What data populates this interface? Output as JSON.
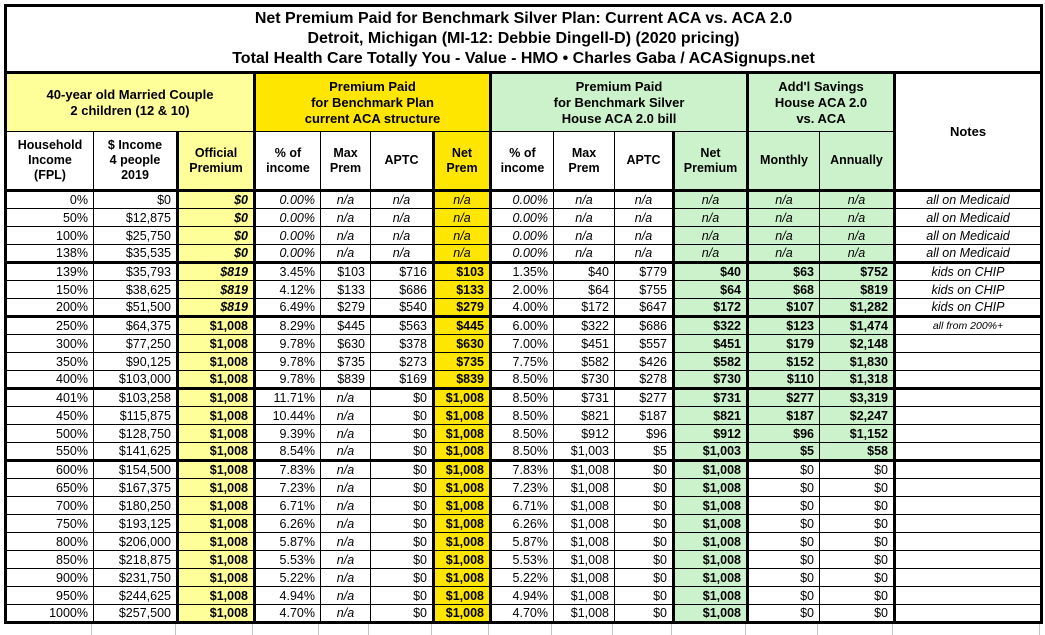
{
  "colors": {
    "pale_yellow": "#FFFF99",
    "bright_yellow": "#FFE600",
    "light_green": "#CCF2CC",
    "border_black": "#000000",
    "grid_gray": "#C4C4C4"
  },
  "chart_data": {
    "type": "table",
    "title_lines": [
      "Net Premium Paid for Benchmark Silver Plan: Current ACA vs. ACA 2.0",
      "Detroit, Michigan (MI-12: Debbie Dingell-D) (2020 pricing)",
      "Total Health Care Totally You - Value - HMO • Charles Gaba / ACASignups.net"
    ],
    "column_groups": [
      {
        "label": "40-year old Married Couple\n2 children (12 & 10)",
        "span": 3,
        "color": "pale_yellow"
      },
      {
        "label": "Premium Paid\nfor Benchmark Plan\ncurrent ACA structure",
        "span": 4,
        "color": "bright_yellow"
      },
      {
        "label": "Premium Paid\nfor Benchmark Silver\nHouse ACA 2.0 bill",
        "span": 4,
        "color": "light_green"
      },
      {
        "label": "Add'l Savings\nHouse ACA 2.0\nvs. ACA",
        "span": 2,
        "color": "light_green"
      },
      {
        "label": "Notes",
        "span": 1,
        "color": "white"
      }
    ],
    "columns": [
      "Household\nIncome\n(FPL)",
      "$ Income\n4 people\n2019",
      "Official\nPremium",
      "% of\nincome",
      "Max\nPrem",
      "APTC",
      "Net\nPrem",
      "% of\nincome",
      "Max\nPrem",
      "APTC",
      "Net\nPremium",
      "Monthly",
      "Annually",
      "Notes"
    ],
    "rows": [
      [
        "0%",
        "$0",
        "$0",
        "0.00%",
        "n/a",
        "n/a",
        "n/a",
        "0.00%",
        "n/a",
        "n/a",
        "n/a",
        "n/a",
        "n/a",
        "all on Medicaid"
      ],
      [
        "50%",
        "$12,875",
        "$0",
        "0.00%",
        "n/a",
        "n/a",
        "n/a",
        "0.00%",
        "n/a",
        "n/a",
        "n/a",
        "n/a",
        "n/a",
        "all on Medicaid"
      ],
      [
        "100%",
        "$25,750",
        "$0",
        "0.00%",
        "n/a",
        "n/a",
        "n/a",
        "0.00%",
        "n/a",
        "n/a",
        "n/a",
        "n/a",
        "n/a",
        "all on Medicaid"
      ],
      [
        "138%",
        "$35,535",
        "$0",
        "0.00%",
        "n/a",
        "n/a",
        "n/a",
        "0.00%",
        "n/a",
        "n/a",
        "n/a",
        "n/a",
        "n/a",
        "all on Medicaid"
      ],
      [
        "139%",
        "$35,793",
        "$819",
        "3.45%",
        "$103",
        "$716",
        "$103",
        "1.35%",
        "$40",
        "$779",
        "$40",
        "$63",
        "$752",
        "kids on CHIP"
      ],
      [
        "150%",
        "$38,625",
        "$819",
        "4.12%",
        "$133",
        "$686",
        "$133",
        "2.00%",
        "$64",
        "$755",
        "$64",
        "$68",
        "$819",
        "kids on CHIP"
      ],
      [
        "200%",
        "$51,500",
        "$819",
        "6.49%",
        "$279",
        "$540",
        "$279",
        "4.00%",
        "$172",
        "$647",
        "$172",
        "$107",
        "$1,282",
        "kids on CHIP"
      ],
      [
        "250%",
        "$64,375",
        "$1,008",
        "8.29%",
        "$445",
        "$563",
        "$445",
        "6.00%",
        "$322",
        "$686",
        "$322",
        "$123",
        "$1,474",
        "all from 200%+"
      ],
      [
        "300%",
        "$77,250",
        "$1,008",
        "9.78%",
        "$630",
        "$378",
        "$630",
        "7.00%",
        "$451",
        "$557",
        "$451",
        "$179",
        "$2,148",
        ""
      ],
      [
        "350%",
        "$90,125",
        "$1,008",
        "9.78%",
        "$735",
        "$273",
        "$735",
        "7.75%",
        "$582",
        "$426",
        "$582",
        "$152",
        "$1,830",
        ""
      ],
      [
        "400%",
        "$103,000",
        "$1,008",
        "9.78%",
        "$839",
        "$169",
        "$839",
        "8.50%",
        "$730",
        "$278",
        "$730",
        "$110",
        "$1,318",
        ""
      ],
      [
        "401%",
        "$103,258",
        "$1,008",
        "11.71%",
        "n/a",
        "$0",
        "$1,008",
        "8.50%",
        "$731",
        "$277",
        "$731",
        "$277",
        "$3,319",
        ""
      ],
      [
        "450%",
        "$115,875",
        "$1,008",
        "10.44%",
        "n/a",
        "$0",
        "$1,008",
        "8.50%",
        "$821",
        "$187",
        "$821",
        "$187",
        "$2,247",
        ""
      ],
      [
        "500%",
        "$128,750",
        "$1,008",
        "9.39%",
        "n/a",
        "$0",
        "$1,008",
        "8.50%",
        "$912",
        "$96",
        "$912",
        "$96",
        "$1,152",
        ""
      ],
      [
        "550%",
        "$141,625",
        "$1,008",
        "8.54%",
        "n/a",
        "$0",
        "$1,008",
        "8.50%",
        "$1,003",
        "$5",
        "$1,003",
        "$5",
        "$58",
        ""
      ],
      [
        "600%",
        "$154,500",
        "$1,008",
        "7.83%",
        "n/a",
        "$0",
        "$1,008",
        "7.83%",
        "$1,008",
        "$0",
        "$1,008",
        "$0",
        "$0",
        ""
      ],
      [
        "650%",
        "$167,375",
        "$1,008",
        "7.23%",
        "n/a",
        "$0",
        "$1,008",
        "7.23%",
        "$1,008",
        "$0",
        "$1,008",
        "$0",
        "$0",
        ""
      ],
      [
        "700%",
        "$180,250",
        "$1,008",
        "6.71%",
        "n/a",
        "$0",
        "$1,008",
        "6.71%",
        "$1,008",
        "$0",
        "$1,008",
        "$0",
        "$0",
        ""
      ],
      [
        "750%",
        "$193,125",
        "$1,008",
        "6.26%",
        "n/a",
        "$0",
        "$1,008",
        "6.26%",
        "$1,008",
        "$0",
        "$1,008",
        "$0",
        "$0",
        ""
      ],
      [
        "800%",
        "$206,000",
        "$1,008",
        "5.87%",
        "n/a",
        "$0",
        "$1,008",
        "5.87%",
        "$1,008",
        "$0",
        "$1,008",
        "$0",
        "$0",
        ""
      ],
      [
        "850%",
        "$218,875",
        "$1,008",
        "5.53%",
        "n/a",
        "$0",
        "$1,008",
        "5.53%",
        "$1,008",
        "$0",
        "$1,008",
        "$0",
        "$0",
        ""
      ],
      [
        "900%",
        "$231,750",
        "$1,008",
        "5.22%",
        "n/a",
        "$0",
        "$1,008",
        "5.22%",
        "$1,008",
        "$0",
        "$1,008",
        "$0",
        "$0",
        ""
      ],
      [
        "950%",
        "$244,625",
        "$1,008",
        "4.94%",
        "n/a",
        "$0",
        "$1,008",
        "4.94%",
        "$1,008",
        "$0",
        "$1,008",
        "$0",
        "$0",
        ""
      ],
      [
        "1000%",
        "$257,500",
        "$1,008",
        "4.70%",
        "n/a",
        "$0",
        "$1,008",
        "4.70%",
        "$1,008",
        "$0",
        "$1,008",
        "$0",
        "$0",
        ""
      ]
    ]
  }
}
